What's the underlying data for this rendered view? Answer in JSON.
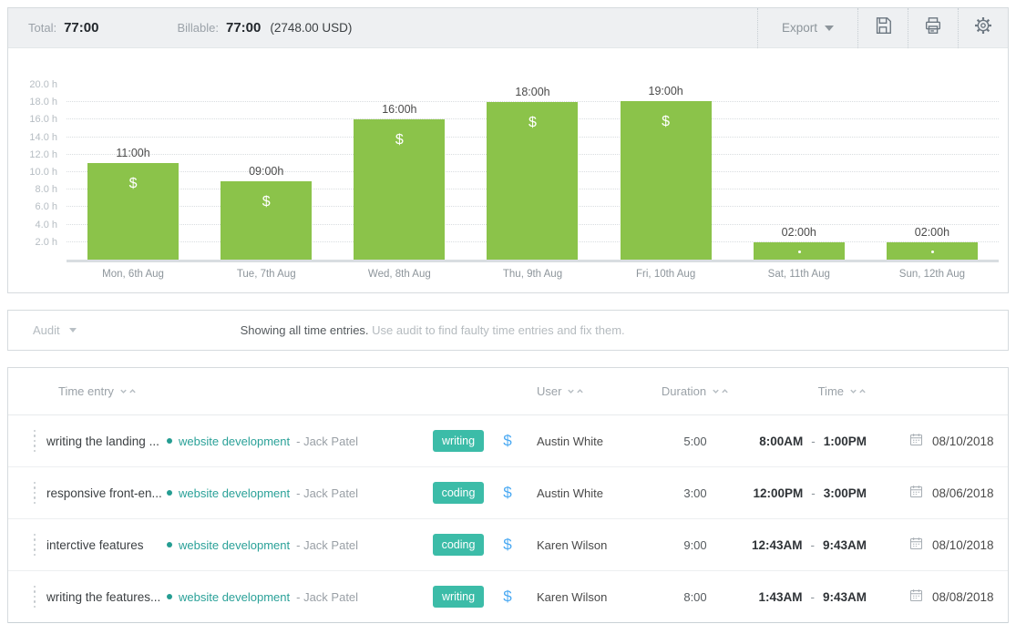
{
  "summary": {
    "total_label": "Total:",
    "total_value": "77:00",
    "billable_label": "Billable:",
    "billable_value": "77:00",
    "billable_amount": "(2748.00 USD)"
  },
  "toolbar": {
    "export_label": "Export",
    "icons": [
      "save-icon",
      "print-icon",
      "settings-icon"
    ]
  },
  "chart_data": {
    "type": "bar",
    "title": "",
    "xlabel": "",
    "ylabel": "hours",
    "categories": [
      "Mon, 6th Aug",
      "Tue, 7th Aug",
      "Wed, 8th Aug",
      "Thu, 9th Aug",
      "Fri, 10th Aug",
      "Sat, 11th Aug",
      "Sun, 12th Aug"
    ],
    "values": [
      11,
      9,
      16,
      18,
      19,
      2,
      2
    ],
    "bar_labels": [
      "11:00h",
      "09:00h",
      "16:00h",
      "18:00h",
      "19:00h",
      "02:00h",
      "02:00h"
    ],
    "billable_marker": "$",
    "ylim": [
      0,
      20
    ],
    "yticks": [
      {
        "value": 20,
        "label": "20.0 h"
      },
      {
        "value": 18,
        "label": "18.0 h"
      },
      {
        "value": 16,
        "label": "16.0 h"
      },
      {
        "value": 14,
        "label": "14.0 h"
      },
      {
        "value": 12,
        "label": "12.0 h"
      },
      {
        "value": 10,
        "label": "10.0 h"
      },
      {
        "value": 8,
        "label": "8.0 h"
      },
      {
        "value": 6,
        "label": "6.0 h"
      },
      {
        "value": 4,
        "label": "4.0 h"
      },
      {
        "value": 2,
        "label": "2.0 h"
      }
    ],
    "grid": true,
    "legend": false,
    "bar_color": "#8bc34a"
  },
  "audit": {
    "dropdown_label": "Audit",
    "message_strong": "Showing all time entries.",
    "message_muted": "Use audit to find faulty time entries and fix them."
  },
  "table": {
    "headers": {
      "entry": "Time entry",
      "user": "User",
      "duration": "Duration",
      "time": "Time"
    },
    "rows": [
      {
        "title": "writing the landing ...",
        "project": "website development",
        "separator": "- ",
        "member": "Jack Patel",
        "tag": "writing",
        "billable": "$",
        "user": "Austin White",
        "duration": "5:00",
        "start": "8:00AM",
        "dash": "-",
        "end": "1:00PM",
        "date": "08/10/2018"
      },
      {
        "title": "responsive front-en...",
        "project": "website development",
        "separator": "- ",
        "member": "Jack Patel",
        "tag": "coding",
        "billable": "$",
        "user": "Austin White",
        "duration": "3:00",
        "start": "12:00PM",
        "dash": "-",
        "end": "3:00PM",
        "date": "08/06/2018"
      },
      {
        "title": "interctive features",
        "project": "website development",
        "separator": "- ",
        "member": "Jack Patel",
        "tag": "coding",
        "billable": "$",
        "user": "Karen Wilson",
        "duration": "9:00",
        "start": "12:43AM",
        "dash": "-",
        "end": "9:43AM",
        "date": "08/10/2018"
      },
      {
        "title": "writing the features...",
        "project": "website development",
        "separator": "- ",
        "member": "Jack Patel",
        "tag": "writing",
        "billable": "$",
        "user": "Karen Wilson",
        "duration": "8:00",
        "start": "1:43AM",
        "dash": "-",
        "end": "9:43AM",
        "date": "08/08/2018"
      }
    ]
  },
  "colors": {
    "bar_green": "#8bc34a",
    "tag_teal": "#3cbca8",
    "project_teal": "#2aa198",
    "billable_blue": "#4aa9f2",
    "summary_bg": "#eef0f2"
  }
}
